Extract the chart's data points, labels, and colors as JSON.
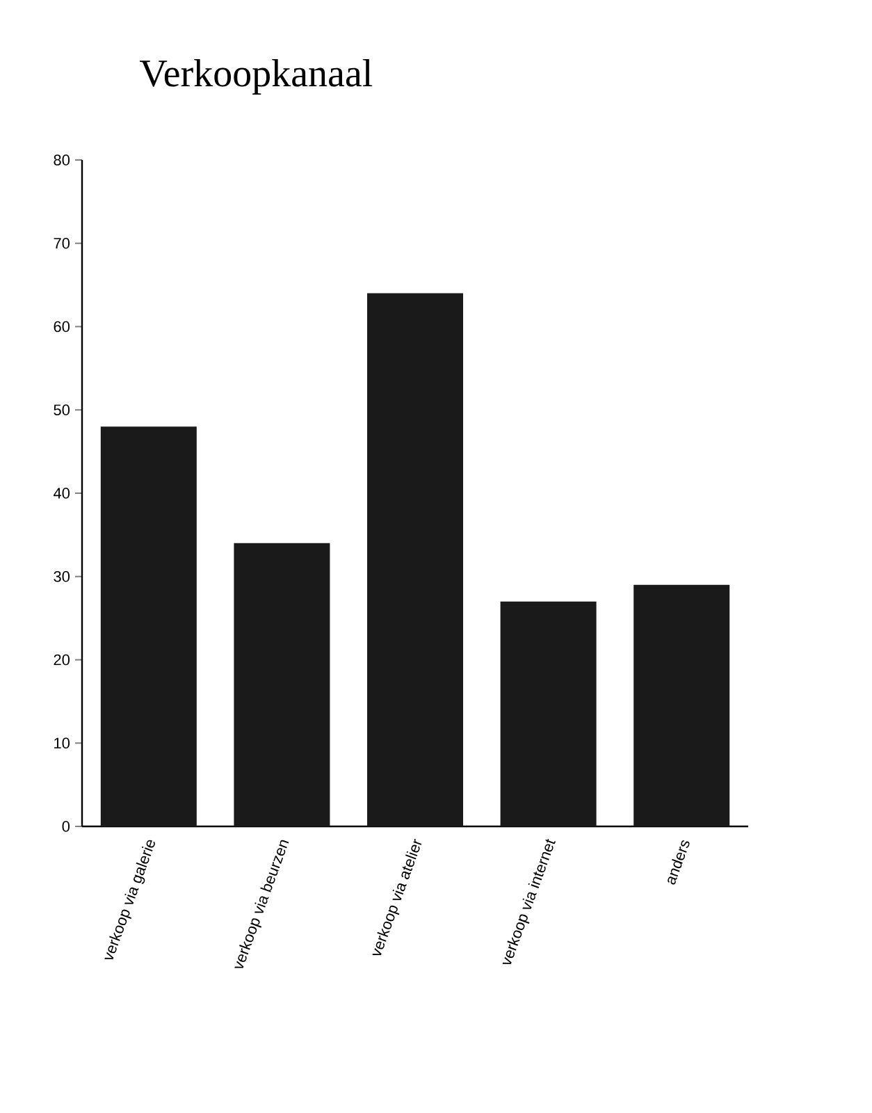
{
  "chart_data": {
    "type": "bar",
    "title": "Verkoopkanaal",
    "categories": [
      "verkoop via galerie",
      "verkoop via beurzen",
      "verkoop via atelier",
      "verkoop via internet",
      "anders"
    ],
    "values": [
      48,
      34,
      64,
      27,
      29
    ],
    "color": "#1a1a1a",
    "ylim": [
      0,
      80
    ],
    "yticks": [
      0,
      10,
      20,
      30,
      40,
      50,
      60,
      70,
      80
    ]
  }
}
